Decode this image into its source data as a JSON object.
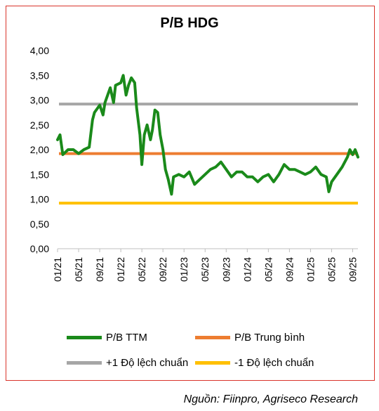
{
  "chart_data": {
    "type": "line",
    "title": "P/B HDG",
    "y_ticks": [
      "4,00",
      "3,50",
      "3,00",
      "2,50",
      "2,00",
      "1,50",
      "1,00",
      "0,50",
      "0,00"
    ],
    "ylim": [
      0,
      4
    ],
    "x_ticks": [
      "01/21",
      "05/21",
      "09/21",
      "01/22",
      "05/22",
      "09/22",
      "01/23",
      "05/23",
      "09/23",
      "01/24",
      "05/24",
      "09/24",
      "01/25",
      "05/25",
      "09/25"
    ],
    "x_range": [
      "2021-01",
      "2025-10"
    ],
    "series": [
      {
        "name": "P/B TTM",
        "color": "#1a8a1a",
        "points": [
          [
            "2021-01",
            2.2
          ],
          [
            "2021-01-15",
            2.3
          ],
          [
            "2021-02",
            1.9
          ],
          [
            "2021-03",
            2.0
          ],
          [
            "2021-04",
            2.0
          ],
          [
            "2021-05",
            1.92
          ],
          [
            "2021-06",
            2.0
          ],
          [
            "2021-07",
            2.05
          ],
          [
            "2021-07-20",
            2.6
          ],
          [
            "2021-08",
            2.75
          ],
          [
            "2021-09",
            2.9
          ],
          [
            "2021-09-20",
            2.7
          ],
          [
            "2021-10",
            2.95
          ],
          [
            "2021-11",
            3.25
          ],
          [
            "2021-11-20",
            2.95
          ],
          [
            "2021-12",
            3.3
          ],
          [
            "2022-01",
            3.35
          ],
          [
            "2022-01-15",
            3.5
          ],
          [
            "2022-02",
            3.1
          ],
          [
            "2022-02-15",
            3.3
          ],
          [
            "2022-03",
            3.45
          ],
          [
            "2022-03-20",
            3.35
          ],
          [
            "2022-04",
            2.85
          ],
          [
            "2022-04-20",
            2.3
          ],
          [
            "2022-05",
            1.7
          ],
          [
            "2022-05-15",
            2.3
          ],
          [
            "2022-06",
            2.5
          ],
          [
            "2022-06-20",
            2.2
          ],
          [
            "2022-07",
            2.4
          ],
          [
            "2022-07-15",
            2.8
          ],
          [
            "2022-08",
            2.75
          ],
          [
            "2022-08-15",
            2.3
          ],
          [
            "2022-09",
            2.0
          ],
          [
            "2022-09-15",
            1.6
          ],
          [
            "2022-10",
            1.4
          ],
          [
            "2022-10-20",
            1.1
          ],
          [
            "2022-11",
            1.45
          ],
          [
            "2022-12",
            1.5
          ],
          [
            "2023-01",
            1.45
          ],
          [
            "2023-02",
            1.55
          ],
          [
            "2023-03",
            1.3
          ],
          [
            "2023-04",
            1.4
          ],
          [
            "2023-05",
            1.5
          ],
          [
            "2023-06",
            1.6
          ],
          [
            "2023-07",
            1.65
          ],
          [
            "2023-08",
            1.75
          ],
          [
            "2023-09",
            1.6
          ],
          [
            "2023-10",
            1.45
          ],
          [
            "2023-11",
            1.55
          ],
          [
            "2023-12",
            1.55
          ],
          [
            "2024-01",
            1.45
          ],
          [
            "2024-02",
            1.45
          ],
          [
            "2024-03",
            1.35
          ],
          [
            "2024-04",
            1.45
          ],
          [
            "2024-05",
            1.5
          ],
          [
            "2024-06",
            1.35
          ],
          [
            "2024-07",
            1.5
          ],
          [
            "2024-08",
            1.7
          ],
          [
            "2024-09",
            1.6
          ],
          [
            "2024-10",
            1.6
          ],
          [
            "2024-11",
            1.55
          ],
          [
            "2024-12",
            1.5
          ],
          [
            "2025-01",
            1.55
          ],
          [
            "2025-02",
            1.65
          ],
          [
            "2025-03",
            1.5
          ],
          [
            "2025-04",
            1.45
          ],
          [
            "2025-04-15",
            1.15
          ],
          [
            "2025-05",
            1.35
          ],
          [
            "2025-06",
            1.5
          ],
          [
            "2025-07",
            1.65
          ],
          [
            "2025-08",
            1.85
          ],
          [
            "2025-08-15",
            2.0
          ],
          [
            "2025-09",
            1.9
          ],
          [
            "2025-09-15",
            2.0
          ],
          [
            "2025-10",
            1.85
          ]
        ]
      },
      {
        "name": "P/B Trung bình",
        "color": "#ed7d31",
        "value": 1.92
      },
      {
        "name": "+1 Độ lệch chuẩn",
        "color": "#a6a6a6",
        "value": 2.92
      },
      {
        "name": "-1 Độ lệch chuẩn",
        "color": "#ffc000",
        "value": 0.92
      }
    ],
    "legend_position": "bottom"
  },
  "source": "Nguồn: Fiinpro, Agriseco Research"
}
